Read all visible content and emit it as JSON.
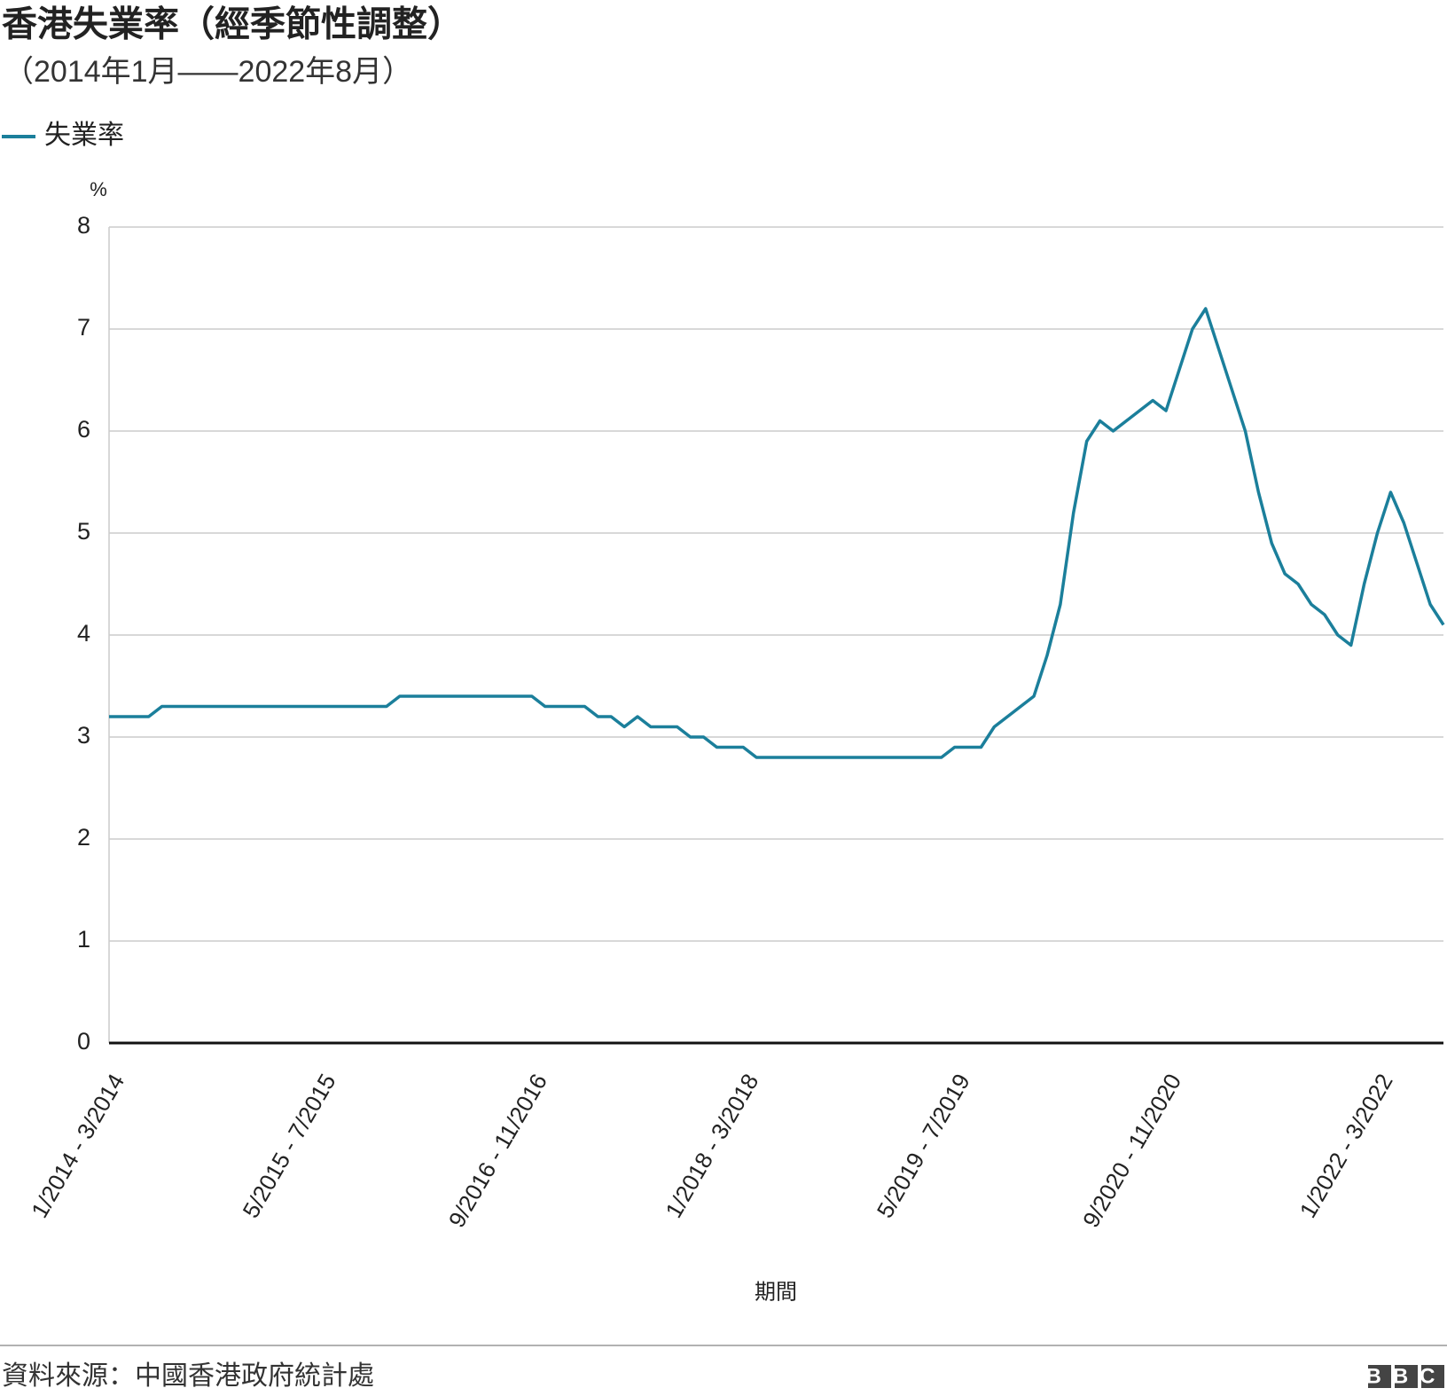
{
  "chart_data": {
    "type": "line",
    "title": "香港失業率（經季節性調整）",
    "subtitle": "（2014年1月——2022年8月）",
    "y_unit": "%",
    "x_label": "期間",
    "categories": [
      "1/2014 - 3/2014",
      null,
      null,
      null,
      null,
      null,
      null,
      null,
      null,
      null,
      null,
      null,
      null,
      null,
      null,
      null,
      "5/2015 - 7/2015",
      null,
      null,
      null,
      null,
      null,
      null,
      null,
      null,
      null,
      null,
      null,
      null,
      null,
      null,
      null,
      "9/2016 - 11/2016",
      null,
      null,
      null,
      null,
      null,
      null,
      null,
      null,
      null,
      null,
      null,
      null,
      null,
      null,
      null,
      "1/2018 - 3/2018",
      null,
      null,
      null,
      null,
      null,
      null,
      null,
      null,
      null,
      null,
      null,
      null,
      null,
      null,
      null,
      "5/2019 - 7/2019",
      null,
      null,
      null,
      null,
      null,
      null,
      null,
      null,
      null,
      null,
      null,
      null,
      null,
      null,
      null,
      "9/2020 - 11/2020",
      null,
      null,
      null,
      null,
      null,
      null,
      null,
      null,
      null,
      null,
      null,
      null,
      null,
      null,
      null,
      "1/2022 - 3/2022",
      null,
      null,
      null,
      null,
      null
    ],
    "series": [
      {
        "name": "失業率",
        "color": "#1b7f9b",
        "values": [
          3.2,
          3.2,
          3.2,
          3.2,
          3.3,
          3.3,
          3.3,
          3.3,
          3.3,
          3.3,
          3.3,
          3.3,
          3.3,
          3.3,
          3.3,
          3.3,
          3.3,
          3.3,
          3.3,
          3.3,
          3.3,
          3.3,
          3.4,
          3.4,
          3.4,
          3.4,
          3.4,
          3.4,
          3.4,
          3.4,
          3.4,
          3.4,
          3.4,
          3.3,
          3.3,
          3.3,
          3.3,
          3.2,
          3.2,
          3.1,
          3.2,
          3.1,
          3.1,
          3.1,
          3.0,
          3.0,
          2.9,
          2.9,
          2.9,
          2.8,
          2.8,
          2.8,
          2.8,
          2.8,
          2.8,
          2.8,
          2.8,
          2.8,
          2.8,
          2.8,
          2.8,
          2.8,
          2.8,
          2.8,
          2.9,
          2.9,
          2.9,
          3.1,
          3.2,
          3.3,
          3.4,
          3.8,
          4.3,
          5.2,
          5.9,
          6.1,
          6.0,
          6.1,
          6.2,
          6.3,
          6.2,
          6.6,
          7.0,
          7.2,
          6.8,
          6.4,
          6.0,
          5.4,
          4.9,
          4.6,
          4.5,
          4.3,
          4.2,
          4.0,
          3.9,
          4.5,
          5.0,
          5.4,
          5.1,
          4.7,
          4.3,
          4.1
        ]
      }
    ],
    "ylim": [
      0,
      8
    ],
    "yticks": [
      0,
      1,
      2,
      3,
      4,
      5,
      6,
      7,
      8
    ],
    "grid": true
  },
  "source": "資料來源：中國香港政府統計處",
  "logo": "BBC"
}
